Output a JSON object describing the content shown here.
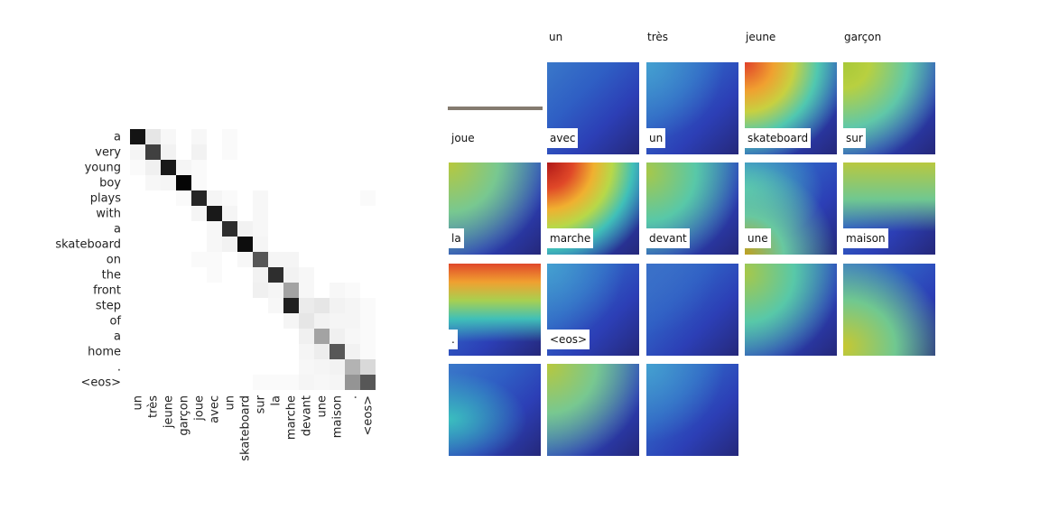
{
  "chart_data": [
    {
      "type": "heatmap",
      "title": "",
      "xlabel": "",
      "ylabel": "",
      "colormap": "greys",
      "rows": [
        "a",
        "very",
        "young",
        "boy",
        "plays",
        "with",
        "a",
        "skateboard",
        "on",
        "the",
        "front",
        "step",
        "of",
        "a",
        "home",
        ".",
        "<eos>"
      ],
      "cols": [
        "un",
        "très",
        "jeune",
        "garçon",
        "joue",
        "avec",
        "un",
        "skateboard",
        "sur",
        "la",
        "marche",
        "devant",
        "une",
        "maison",
        ".",
        "<eos>"
      ],
      "values": [
        [
          0.92,
          0.1,
          0.03,
          0.0,
          0.03,
          0.0,
          0.02,
          0.0,
          0.0,
          0.0,
          0.0,
          0.0,
          0.0,
          0.0,
          0.0,
          0.0
        ],
        [
          0.04,
          0.75,
          0.05,
          0.0,
          0.05,
          0.0,
          0.02,
          0.0,
          0.0,
          0.0,
          0.0,
          0.0,
          0.0,
          0.0,
          0.0,
          0.0
        ],
        [
          0.02,
          0.06,
          0.9,
          0.04,
          0.02,
          0.0,
          0.0,
          0.0,
          0.0,
          0.0,
          0.0,
          0.0,
          0.0,
          0.0,
          0.0,
          0.0
        ],
        [
          0.0,
          0.03,
          0.04,
          0.98,
          0.02,
          0.0,
          0.0,
          0.0,
          0.0,
          0.0,
          0.0,
          0.0,
          0.0,
          0.0,
          0.0,
          0.0
        ],
        [
          0.0,
          0.0,
          0.0,
          0.02,
          0.85,
          0.04,
          0.02,
          0.0,
          0.03,
          0.0,
          0.0,
          0.0,
          0.0,
          0.0,
          0.0,
          0.02
        ],
        [
          0.0,
          0.0,
          0.0,
          0.0,
          0.04,
          0.9,
          0.04,
          0.0,
          0.03,
          0.0,
          0.0,
          0.0,
          0.0,
          0.0,
          0.0,
          0.0
        ],
        [
          0.0,
          0.0,
          0.0,
          0.0,
          0.0,
          0.03,
          0.82,
          0.05,
          0.03,
          0.0,
          0.0,
          0.0,
          0.0,
          0.0,
          0.0,
          0.0
        ],
        [
          0.0,
          0.0,
          0.0,
          0.0,
          0.0,
          0.03,
          0.05,
          0.95,
          0.04,
          0.0,
          0.0,
          0.0,
          0.0,
          0.0,
          0.0,
          0.0
        ],
        [
          0.0,
          0.0,
          0.0,
          0.0,
          0.02,
          0.02,
          0.0,
          0.03,
          0.66,
          0.04,
          0.04,
          0.0,
          0.0,
          0.0,
          0.0,
          0.0
        ],
        [
          0.0,
          0.0,
          0.0,
          0.0,
          0.0,
          0.02,
          0.0,
          0.0,
          0.05,
          0.82,
          0.05,
          0.03,
          0.0,
          0.0,
          0.0,
          0.0
        ],
        [
          0.0,
          0.0,
          0.0,
          0.0,
          0.0,
          0.0,
          0.0,
          0.0,
          0.06,
          0.04,
          0.36,
          0.03,
          0.0,
          0.03,
          0.02,
          0.0
        ],
        [
          0.0,
          0.0,
          0.0,
          0.0,
          0.0,
          0.0,
          0.0,
          0.0,
          0.0,
          0.03,
          0.88,
          0.08,
          0.1,
          0.05,
          0.04,
          0.02
        ],
        [
          0.0,
          0.0,
          0.0,
          0.0,
          0.0,
          0.0,
          0.0,
          0.0,
          0.0,
          0.0,
          0.04,
          0.1,
          0.05,
          0.04,
          0.04,
          0.02
        ],
        [
          0.0,
          0.0,
          0.0,
          0.0,
          0.0,
          0.0,
          0.0,
          0.0,
          0.0,
          0.0,
          0.0,
          0.06,
          0.36,
          0.06,
          0.03,
          0.02
        ],
        [
          0.0,
          0.0,
          0.0,
          0.0,
          0.0,
          0.0,
          0.0,
          0.0,
          0.0,
          0.0,
          0.0,
          0.04,
          0.07,
          0.66,
          0.05,
          0.02
        ],
        [
          0.0,
          0.0,
          0.0,
          0.0,
          0.0,
          0.0,
          0.0,
          0.0,
          0.0,
          0.0,
          0.0,
          0.03,
          0.04,
          0.05,
          0.3,
          0.15
        ],
        [
          0.0,
          0.0,
          0.0,
          0.0,
          0.0,
          0.0,
          0.0,
          0.0,
          0.02,
          0.02,
          0.02,
          0.04,
          0.03,
          0.04,
          0.42,
          0.66
        ]
      ]
    }
  ],
  "attention_grid": {
    "header_labels": [
      "un",
      "très",
      "jeune",
      "garçon"
    ],
    "panels": [
      {
        "word": "joue",
        "heat": "none"
      },
      {
        "word": "avec",
        "heat": "low"
      },
      {
        "word": "un",
        "heat": "top-left"
      },
      {
        "word": "skateboard",
        "heat": "upper-left"
      },
      {
        "word": "sur",
        "heat": "upper-left-mild"
      },
      {
        "word": "la",
        "heat": "top-left-strong"
      },
      {
        "word": "marche",
        "heat": "left-mild"
      },
      {
        "word": "devant",
        "heat": "left-band"
      },
      {
        "word": "une",
        "heat": "top-band"
      },
      {
        "word": "maison",
        "heat": "top-band-strong"
      },
      {
        "word": ".",
        "heat": "low"
      },
      {
        "word": "<eos>",
        "heat": "none-dark"
      },
      {
        "word": "",
        "heat": "left-mild"
      },
      {
        "word": "",
        "heat": "bottom-left"
      },
      {
        "word": "",
        "heat": "low-left"
      },
      {
        "word": "",
        "heat": "upper-left-mild"
      },
      {
        "word": "",
        "heat": "low"
      }
    ]
  }
}
